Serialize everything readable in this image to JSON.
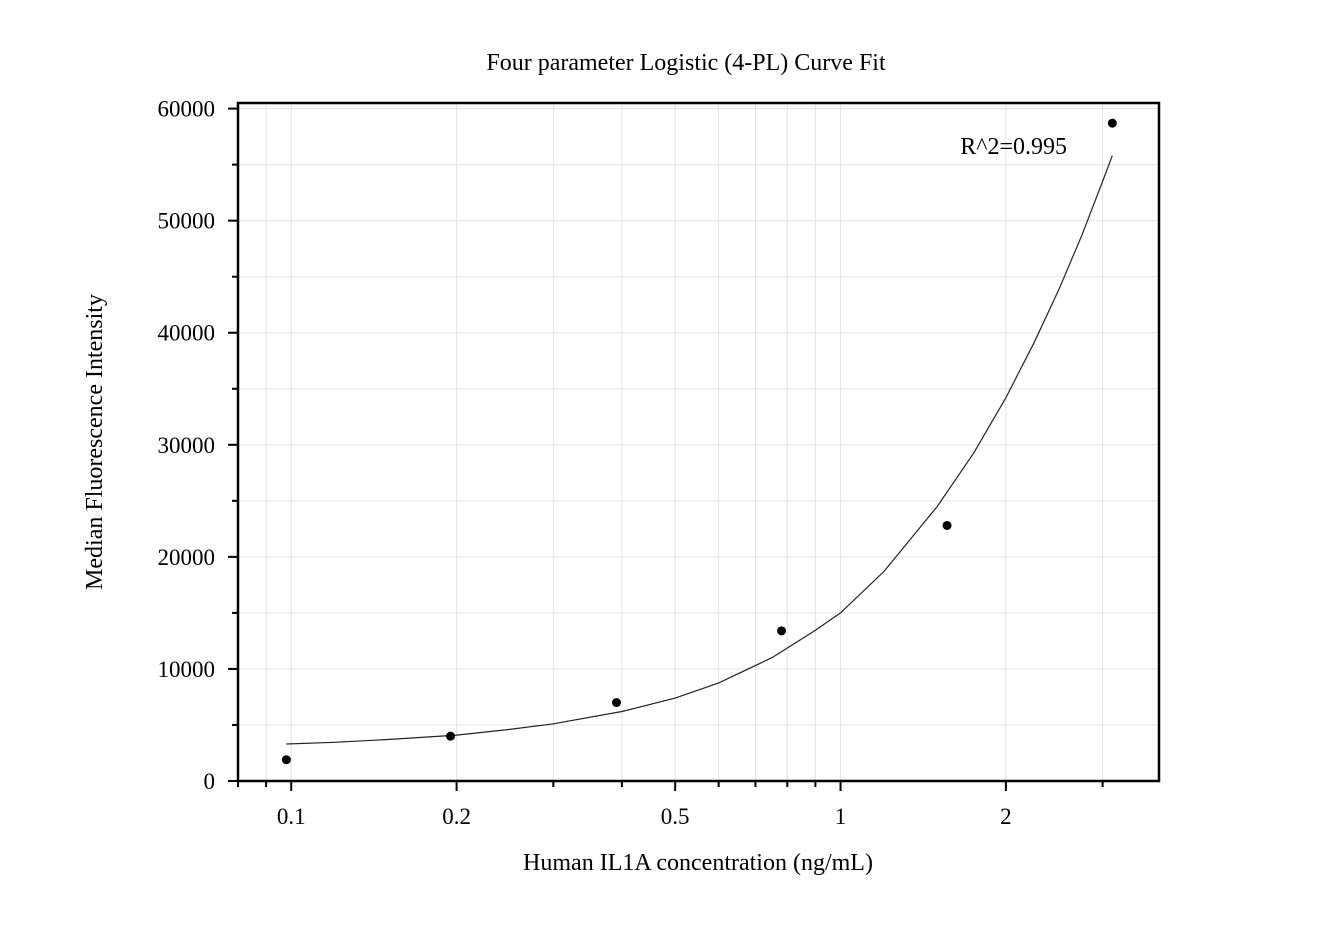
{
  "chart_data": {
    "type": "scatter",
    "title": "Four parameter Logistic (4-PL) Curve Fit",
    "xlabel": "Human IL1A concentration (ng/mL)",
    "ylabel": "Median Fluorescence Intensity",
    "x_scale": "log",
    "xlim": [
      0.08,
      3.8
    ],
    "ylim": [
      0,
      60500
    ],
    "x_ticks": [
      0.1,
      0.2,
      0.5,
      1,
      2
    ],
    "x_tick_labels": [
      "0.1",
      "0.2",
      "0.5",
      "1",
      "2"
    ],
    "y_ticks": [
      0,
      10000,
      20000,
      30000,
      40000,
      50000,
      60000
    ],
    "y_tick_labels": [
      "0",
      "10000",
      "20000",
      "30000",
      "40000",
      "50000",
      "60000"
    ],
    "grid": true,
    "annotation": "R^2=0.995",
    "series": [
      {
        "type": "scatter",
        "x": [
          0.098,
          0.195,
          0.391,
          0.781,
          1.563,
          3.125
        ],
        "y": [
          1900,
          4000,
          7000,
          13400,
          22800,
          58700
        ]
      },
      {
        "type": "line",
        "x": [
          0.098,
          0.12,
          0.15,
          0.2,
          0.25,
          0.3,
          0.4,
          0.5,
          0.6,
          0.75,
          0.9,
          1.0,
          1.2,
          1.5,
          1.75,
          2.0,
          2.25,
          2.5,
          2.75,
          3.0,
          3.125
        ],
        "y": [
          3300,
          3450,
          3700,
          4100,
          4600,
          5100,
          6200,
          7400,
          8750,
          11000,
          13450,
          15000,
          18700,
          24500,
          29300,
          34200,
          39100,
          43900,
          48700,
          53500,
          55800
        ]
      }
    ]
  }
}
